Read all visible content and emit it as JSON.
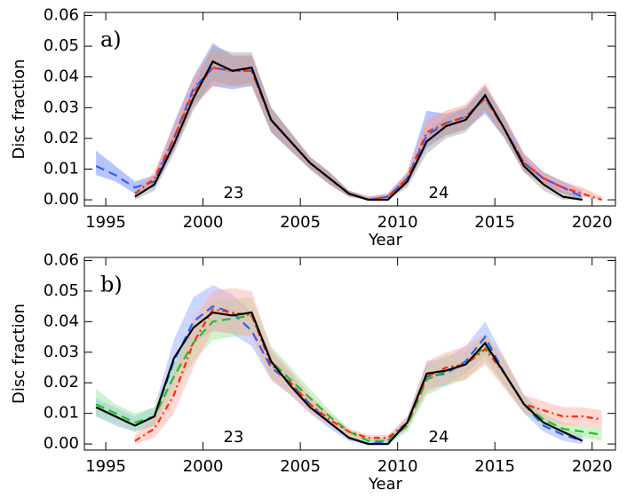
{
  "chart_data": [
    {
      "type": "line",
      "panel_label": "a)",
      "annotations": [
        "23",
        "24"
      ],
      "xlabel": "Year",
      "ylabel": "Disc fraction",
      "xlim": [
        1993.9,
        2021.2
      ],
      "ylim": [
        -0.002,
        0.061
      ],
      "xticks": [
        1995,
        2000,
        2005,
        2010,
        2015,
        2020
      ],
      "yticks": [
        {
          "value": 0,
          "label": "0.00"
        },
        {
          "value": 0.01,
          "label": "0.01"
        },
        {
          "value": 0.02,
          "label": "0.02"
        },
        {
          "value": 0.03,
          "label": "0.03"
        },
        {
          "value": 0.04,
          "label": "0.04"
        },
        {
          "value": 0.05,
          "label": "0.05"
        },
        {
          "value": 0.06,
          "label": "0.06"
        }
      ],
      "x": [
        1994.5,
        1995.5,
        1996.5,
        1997.5,
        1998.5,
        1999.5,
        2000.5,
        2001.5,
        2002.5,
        2003.5,
        2004.5,
        2005.5,
        2006.5,
        2007.5,
        2008.5,
        2009.5,
        2010.5,
        2011.5,
        2012.5,
        2013.5,
        2014.5,
        2015.5,
        2016.5,
        2017.5,
        2018.5,
        2019.5,
        2020.5
      ],
      "series": [
        {
          "color": "#2f5cff",
          "style": "dashed",
          "band_color": "#6f8cff",
          "values": [
            0.011,
            0.008,
            0.004,
            0.006,
            0.02,
            0.036,
            0.043,
            0.042,
            0.042,
            0.026,
            0.019,
            0.012,
            0.007,
            0.002,
            0.0,
            0.001,
            0.007,
            0.021,
            0.025,
            0.027,
            0.033,
            0.023,
            0.012,
            0.007,
            0.004,
            0.001,
            null
          ],
          "upper": [
            0.016,
            0.011,
            0.006,
            0.008,
            0.025,
            0.04,
            0.051,
            0.047,
            0.047,
            0.03,
            0.022,
            0.014,
            0.009,
            0.003,
            0.001,
            0.002,
            0.009,
            0.029,
            0.028,
            0.03,
            0.037,
            0.027,
            0.015,
            0.009,
            0.006,
            0.003,
            null
          ],
          "lower": [
            0.008,
            0.006,
            0.002,
            0.004,
            0.016,
            0.031,
            0.037,
            0.036,
            0.037,
            0.022,
            0.016,
            0.01,
            0.005,
            0.001,
            0.0,
            0.0,
            0.005,
            0.017,
            0.021,
            0.023,
            0.028,
            0.02,
            0.009,
            0.005,
            0.002,
            0.0,
            null
          ]
        },
        {
          "color": "#ff2a00",
          "style": "dashdot",
          "band_color": "#ff9a8a",
          "values": [
            null,
            null,
            0.002,
            0.007,
            0.02,
            0.035,
            0.043,
            0.042,
            0.042,
            0.026,
            0.019,
            0.012,
            0.007,
            0.002,
            0.0,
            0.001,
            0.007,
            0.022,
            0.025,
            0.027,
            0.033,
            0.023,
            0.012,
            0.007,
            0.004,
            0.002,
            0.0
          ],
          "upper": [
            null,
            null,
            0.003,
            0.009,
            0.024,
            0.04,
            0.049,
            0.047,
            0.047,
            0.03,
            0.022,
            0.014,
            0.009,
            0.003,
            0.001,
            0.002,
            0.009,
            0.026,
            0.029,
            0.031,
            0.038,
            0.027,
            0.015,
            0.009,
            0.006,
            0.004,
            0.001
          ],
          "lower": [
            null,
            null,
            0.001,
            0.005,
            0.016,
            0.03,
            0.037,
            0.037,
            0.037,
            0.022,
            0.016,
            0.01,
            0.005,
            0.001,
            0.0,
            0.0,
            0.005,
            0.018,
            0.021,
            0.023,
            0.029,
            0.02,
            0.009,
            0.005,
            0.002,
            0.001,
            0.0
          ]
        },
        {
          "color": "#000000",
          "style": "solid",
          "band_color": "#a8a8a8",
          "values": [
            null,
            null,
            0.001,
            0.005,
            0.018,
            0.033,
            0.045,
            0.042,
            0.043,
            0.026,
            0.019,
            0.012,
            0.007,
            0.002,
            0.0,
            0.0,
            0.006,
            0.019,
            0.024,
            0.026,
            0.034,
            0.023,
            0.011,
            0.005,
            0.001,
            0.0,
            null
          ],
          "upper": [
            null,
            null,
            0.002,
            0.007,
            0.021,
            0.037,
            0.05,
            0.048,
            0.048,
            0.03,
            0.022,
            0.014,
            0.009,
            0.003,
            0.001,
            0.001,
            0.008,
            0.022,
            0.027,
            0.03,
            0.037,
            0.026,
            0.014,
            0.007,
            0.003,
            0.001,
            null
          ],
          "lower": [
            null,
            null,
            0.0,
            0.003,
            0.015,
            0.029,
            0.039,
            0.037,
            0.038,
            0.022,
            0.016,
            0.01,
            0.005,
            0.001,
            0.0,
            0.0,
            0.004,
            0.015,
            0.02,
            0.022,
            0.029,
            0.02,
            0.009,
            0.003,
            0.0,
            0.0,
            null
          ]
        }
      ]
    },
    {
      "type": "line",
      "panel_label": "b)",
      "annotations": [
        "23",
        "24"
      ],
      "xlabel": "Year",
      "ylabel": "Disc fraction",
      "xlim": [
        1993.9,
        2021.2
      ],
      "ylim": [
        -0.002,
        0.061
      ],
      "xticks": [
        1995,
        2000,
        2005,
        2010,
        2015,
        2020
      ],
      "yticks": [
        {
          "value": 0,
          "label": "0.00"
        },
        {
          "value": 0.01,
          "label": "0.01"
        },
        {
          "value": 0.02,
          "label": "0.02"
        },
        {
          "value": 0.03,
          "label": "0.03"
        },
        {
          "value": 0.04,
          "label": "0.04"
        },
        {
          "value": 0.05,
          "label": "0.05"
        },
        {
          "value": 0.06,
          "label": "0.06"
        }
      ],
      "x": [
        1994.5,
        1995.5,
        1996.5,
        1997.5,
        1998.5,
        1999.5,
        2000.5,
        2001.5,
        2002.5,
        2003.5,
        2004.5,
        2005.5,
        2006.5,
        2007.5,
        2008.5,
        2009.5,
        2010.5,
        2011.5,
        2012.5,
        2013.5,
        2014.5,
        2015.5,
        2016.5,
        2017.5,
        2018.5,
        2019.5,
        2020.5
      ],
      "series": [
        {
          "color": "#2f5cff",
          "style": "dashed",
          "band_color": "#9ab0ff",
          "values": [
            0.012,
            0.009,
            0.006,
            0.009,
            0.027,
            0.04,
            0.045,
            0.043,
            0.037,
            0.025,
            0.02,
            0.013,
            0.007,
            0.002,
            0.0,
            0.001,
            0.007,
            0.022,
            0.023,
            0.027,
            0.035,
            0.023,
            0.013,
            0.006,
            0.003,
            0.001,
            null
          ],
          "upper": [
            0.015,
            0.012,
            0.009,
            0.012,
            0.034,
            0.048,
            0.052,
            0.049,
            0.043,
            0.03,
            0.023,
            0.015,
            0.009,
            0.003,
            0.001,
            0.002,
            0.009,
            0.027,
            0.028,
            0.032,
            0.04,
            0.028,
            0.016,
            0.009,
            0.005,
            0.003,
            null
          ],
          "lower": [
            0.009,
            0.006,
            0.004,
            0.006,
            0.021,
            0.033,
            0.037,
            0.036,
            0.032,
            0.021,
            0.016,
            0.01,
            0.005,
            0.001,
            0.0,
            0.0,
            0.005,
            0.018,
            0.019,
            0.023,
            0.029,
            0.019,
            0.01,
            0.004,
            0.001,
            0.0,
            null
          ]
        },
        {
          "color": "#20c020",
          "style": "dashed",
          "band_color": "#9ee89e",
          "values": [
            0.013,
            0.01,
            0.007,
            0.009,
            0.022,
            0.033,
            0.04,
            0.041,
            0.042,
            0.027,
            0.021,
            0.015,
            0.009,
            0.004,
            0.001,
            0.001,
            0.006,
            0.021,
            0.024,
            0.026,
            0.032,
            0.023,
            0.013,
            0.008,
            0.005,
            0.004,
            0.003
          ],
          "upper": [
            0.018,
            0.013,
            0.01,
            0.012,
            0.027,
            0.039,
            0.047,
            0.047,
            0.048,
            0.032,
            0.025,
            0.018,
            0.011,
            0.005,
            0.002,
            0.002,
            0.008,
            0.026,
            0.029,
            0.03,
            0.036,
            0.027,
            0.016,
            0.01,
            0.007,
            0.006,
            0.005
          ],
          "lower": [
            0.009,
            0.007,
            0.004,
            0.006,
            0.017,
            0.027,
            0.034,
            0.035,
            0.036,
            0.022,
            0.017,
            0.012,
            0.007,
            0.002,
            0.0,
            0.0,
            0.004,
            0.016,
            0.019,
            0.021,
            0.027,
            0.019,
            0.01,
            0.006,
            0.003,
            0.002,
            0.001
          ]
        },
        {
          "color": "#ff2a00",
          "style": "dashdot",
          "band_color": "#ffb0a8",
          "values": [
            null,
            null,
            0.001,
            0.005,
            0.016,
            0.033,
            0.044,
            0.043,
            0.042,
            0.026,
            0.02,
            0.013,
            0.008,
            0.004,
            0.002,
            0.002,
            0.007,
            0.022,
            0.025,
            0.026,
            0.031,
            0.023,
            0.013,
            0.011,
            0.009,
            0.009,
            0.008
          ],
          "upper": [
            null,
            null,
            0.003,
            0.009,
            0.023,
            0.041,
            0.05,
            0.051,
            0.05,
            0.031,
            0.024,
            0.016,
            0.01,
            0.005,
            0.003,
            0.003,
            0.009,
            0.027,
            0.03,
            0.032,
            0.036,
            0.028,
            0.016,
            0.014,
            0.012,
            0.012,
            0.011
          ],
          "lower": [
            null,
            null,
            0.0,
            0.002,
            0.01,
            0.025,
            0.037,
            0.036,
            0.035,
            0.021,
            0.016,
            0.01,
            0.006,
            0.002,
            0.001,
            0.001,
            0.005,
            0.017,
            0.02,
            0.021,
            0.026,
            0.018,
            0.01,
            0.008,
            0.006,
            0.006,
            0.005
          ]
        },
        {
          "color": "#000000",
          "style": "solid",
          "values": [
            0.012,
            0.009,
            0.006,
            0.009,
            0.028,
            0.038,
            0.043,
            0.042,
            0.043,
            0.027,
            0.019,
            0.012,
            0.007,
            0.002,
            0.0,
            0.0,
            0.007,
            0.023,
            0.024,
            0.026,
            0.033,
            0.023,
            0.013,
            0.007,
            0.004,
            0.001,
            null
          ]
        }
      ]
    }
  ]
}
